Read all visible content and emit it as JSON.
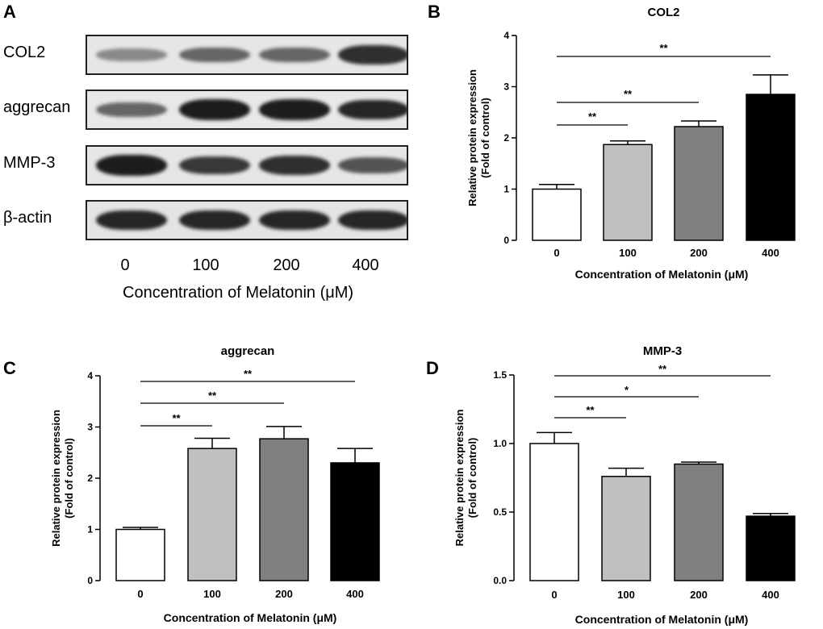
{
  "panels": {
    "A": "A",
    "B": "B",
    "C": "C",
    "D": "D"
  },
  "western_blot": {
    "rows": [
      {
        "label": "COL2",
        "intensities": [
          0.35,
          0.55,
          0.55,
          0.85
        ]
      },
      {
        "label": "aggrecan",
        "intensities": [
          0.55,
          0.95,
          0.95,
          0.9
        ]
      },
      {
        "label": "MMP-3",
        "intensities": [
          0.95,
          0.8,
          0.85,
          0.65
        ]
      },
      {
        "label": "β-actin",
        "intensities": [
          0.9,
          0.9,
          0.9,
          0.9
        ]
      }
    ],
    "lanes": [
      "0",
      "100",
      "200",
      "400"
    ],
    "xlabel": "Concentration of Melatonin (μM)"
  },
  "colors": {
    "bar_0": "#ffffff",
    "bar_100": "#c0c0c0",
    "bar_200": "#808080",
    "bar_400": "#000000"
  },
  "chart_data": [
    {
      "id": "B",
      "type": "bar",
      "title": "COL2",
      "categories": [
        "0",
        "100",
        "200",
        "400"
      ],
      "values": [
        1.0,
        1.87,
        2.22,
        2.85
      ],
      "errors": [
        0.09,
        0.07,
        0.11,
        0.38
      ],
      "ylim": [
        0,
        4
      ],
      "yticks": [
        "0",
        "1",
        "2",
        "3",
        "4"
      ],
      "ylabel": "Relative protein expression",
      "ylabel2": "(Fold of control)",
      "xlabel": "Concentration of Melatonin (μM)",
      "significance": [
        {
          "from": 0,
          "to": 1,
          "label": "**"
        },
        {
          "from": 0,
          "to": 2,
          "label": "**"
        },
        {
          "from": 0,
          "to": 3,
          "label": "**"
        }
      ]
    },
    {
      "id": "C",
      "type": "bar",
      "title": "aggrecan",
      "categories": [
        "0",
        "100",
        "200",
        "400"
      ],
      "values": [
        1.0,
        2.58,
        2.77,
        2.3
      ],
      "errors": [
        0.04,
        0.2,
        0.24,
        0.28
      ],
      "ylim": [
        0,
        4
      ],
      "yticks": [
        "0",
        "1",
        "2",
        "3",
        "4"
      ],
      "ylabel": "Relative protein expression",
      "ylabel2": "(Fold of control)",
      "xlabel": "Concentration of Melatonin (μM)",
      "significance": [
        {
          "from": 0,
          "to": 1,
          "label": "**"
        },
        {
          "from": 0,
          "to": 2,
          "label": "**"
        },
        {
          "from": 0,
          "to": 3,
          "label": "**"
        }
      ]
    },
    {
      "id": "D",
      "type": "bar",
      "title": "MMP-3",
      "categories": [
        "0",
        "100",
        "200",
        "400"
      ],
      "values": [
        1.0,
        0.76,
        0.85,
        0.47
      ],
      "errors": [
        0.08,
        0.06,
        0.015,
        0.02
      ],
      "ylim": [
        0,
        1.5
      ],
      "yticks": [
        "0.0",
        "0.5",
        "1.0",
        "1.5"
      ],
      "ylabel": "Relative protein expression",
      "ylabel2": "(Fold of control)",
      "xlabel": "Concentration of Melatonin (μM)",
      "significance": [
        {
          "from": 0,
          "to": 1,
          "label": "**"
        },
        {
          "from": 0,
          "to": 2,
          "label": "*"
        },
        {
          "from": 0,
          "to": 3,
          "label": "**"
        }
      ]
    }
  ]
}
